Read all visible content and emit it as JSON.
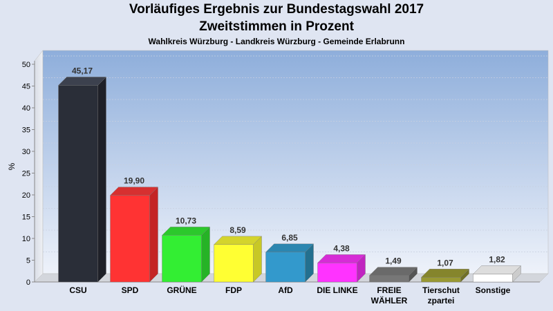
{
  "chart_data": {
    "type": "bar",
    "title": "Vorläufiges Ergebnis zur Bundestagswahl 2017",
    "subtitle": "Zweitstimmen in Prozent",
    "subsubtitle": "Wahlkreis Würzburg - Landkreis Würzburg - Gemeinde Erlabrunn",
    "ylabel": "%",
    "xlabel": "",
    "ylim": [
      0,
      50
    ],
    "yticks": [
      0,
      5,
      10,
      15,
      20,
      25,
      30,
      35,
      40,
      45,
      50
    ],
    "grid": true,
    "categories": [
      "CSU",
      "SPD",
      "GRÜNE",
      "FDP",
      "AfD",
      "DIE LINKE",
      "FREIE\nWÄHLER",
      "Tierschut\nzpartei",
      "Sonstige"
    ],
    "values": [
      45.17,
      19.9,
      10.73,
      8.59,
      6.85,
      4.38,
      1.49,
      1.07,
      1.82
    ],
    "value_labels": [
      "45,17",
      "19,90",
      "10,73",
      "8,59",
      "6,85",
      "4,38",
      "1,49",
      "1,07",
      "1,82"
    ],
    "colors": [
      "#2a2e38",
      "#ff3333",
      "#33ee33",
      "#ffff33",
      "#3399cc",
      "#ff33ff",
      "#777777",
      "#999933",
      "#ffffff"
    ],
    "side_colors": [
      "#1e2028",
      "#c42424",
      "#26b326",
      "#c8c826",
      "#23708f",
      "#c024c0",
      "#555555",
      "#707026",
      "#cccccc"
    ],
    "top_colors": [
      "#3c414e",
      "#d63030",
      "#2cc82c",
      "#d4d42c",
      "#2c86b0",
      "#d62cd6",
      "#6a6a6a",
      "#85852c",
      "#dddddd"
    ]
  }
}
